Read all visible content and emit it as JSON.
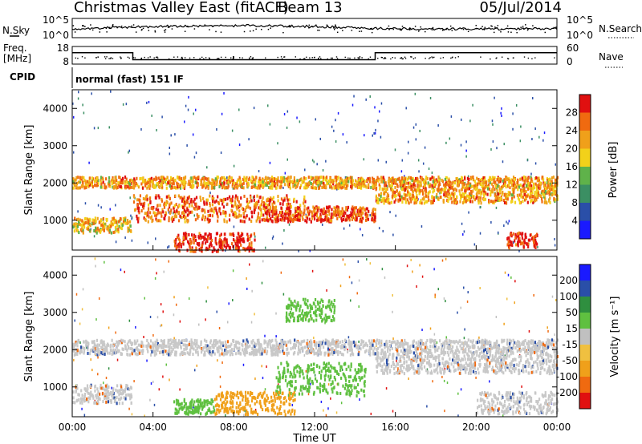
{
  "header": {
    "station": "Christmas Valley East (fitACF)",
    "beam": "Beam 13",
    "date": "05/Jul/2014"
  },
  "noise_panel": {
    "left_label": "N.Sky",
    "left_ticks": [
      "10^5",
      "10^0"
    ],
    "right_label": "N.Search",
    "right_ticks": [
      "10^5",
      "10^0"
    ]
  },
  "freq_panel": {
    "left_label_line1": "Freq.",
    "left_label_line2": "[MHz]",
    "left_ticks": [
      "18",
      "8"
    ],
    "right_label": "Nave",
    "right_ticks": [
      "60",
      "0"
    ]
  },
  "cpid_panel": {
    "label": "CPID",
    "mode_text": "normal (fast) 151 IF"
  },
  "colors": {
    "power": [
      "#1a1aff",
      "#2a4fa8",
      "#3b8f63",
      "#5fb24a",
      "#f2d11a",
      "#f0a01a",
      "#f06a10",
      "#e01010"
    ],
    "velocity": [
      "#e01010",
      "#f06a10",
      "#f0a01a",
      "#f0c040",
      "#c0c0c0",
      "#5fc040",
      "#2f8f3f",
      "#2a4fa8",
      "#1a1aff"
    ],
    "gray_scatter": "#c8c8c8"
  },
  "chart_data": [
    {
      "type": "heatmap",
      "name": "power",
      "ylabel": "Slant Range [km]",
      "xlabel": "",
      "ylim": [
        200,
        4500
      ],
      "y_ticks": [
        "1000",
        "2000",
        "3000",
        "4000"
      ],
      "colorbar_label": "Power [dB]",
      "colorbar_ticks": [
        "4",
        "8",
        "12",
        "16",
        "20",
        "24",
        "28"
      ],
      "colorbar_range": [
        0,
        32
      ],
      "bands": [
        {
          "t_start": 0.0,
          "t_end": 24.0,
          "range_km": [
            1900,
            2200
          ],
          "power_db": 22
        },
        {
          "t_start": 0.0,
          "t_end": 2.9,
          "range_km": [
            700,
            1100
          ],
          "power_db": 20
        },
        {
          "t_start": 3.0,
          "t_end": 11.5,
          "range_km": [
            1000,
            1700
          ],
          "power_db": 26
        },
        {
          "t_start": 9.5,
          "t_end": 15.0,
          "range_km": [
            1000,
            1400
          ],
          "power_db": 28
        },
        {
          "t_start": 15.0,
          "t_end": 24.0,
          "range_km": [
            1500,
            1900
          ],
          "power_db": 22
        },
        {
          "t_start": 5.0,
          "t_end": 9.0,
          "range_km": [
            200,
            700
          ],
          "power_db": 30
        },
        {
          "t_start": 21.5,
          "t_end": 23.0,
          "range_km": [
            300,
            700
          ],
          "power_db": 30
        }
      ]
    },
    {
      "type": "heatmap",
      "name": "velocity",
      "ylabel": "Slant Range [km]",
      "xlabel": "Time UT",
      "ylim": [
        200,
        4500
      ],
      "y_ticks": [
        "1000",
        "2000",
        "3000",
        "4000"
      ],
      "x_ticks": [
        "00:00",
        "04:00",
        "08:00",
        "12:00",
        "16:00",
        "20:00",
        "00:00"
      ],
      "xlim_hours": [
        0,
        24
      ],
      "colorbar_label": "Velocity [m s⁻¹]",
      "colorbar_ticks": [
        "200",
        "100",
        "50",
        "15",
        "-15",
        "-50",
        "-100",
        "-200"
      ],
      "bands": [
        {
          "t_start": 0.0,
          "t_end": 24.0,
          "range_km": [
            1900,
            2300
          ],
          "velocity": 0
        },
        {
          "t_start": 0.0,
          "t_end": 2.9,
          "range_km": [
            600,
            1100
          ],
          "velocity": 0
        },
        {
          "t_start": 15.0,
          "t_end": 24.0,
          "range_km": [
            1400,
            1900
          ],
          "velocity": 0
        },
        {
          "t_start": 10.0,
          "t_end": 14.5,
          "range_km": [
            800,
            1700
          ],
          "velocity": 40
        },
        {
          "t_start": 7.0,
          "t_end": 11.0,
          "range_km": [
            300,
            900
          ],
          "velocity": -60
        },
        {
          "t_start": 5.0,
          "t_end": 7.0,
          "range_km": [
            300,
            700
          ],
          "velocity": 40
        },
        {
          "t_start": 10.5,
          "t_end": 13.0,
          "range_km": [
            2800,
            3400
          ],
          "velocity": 40
        },
        {
          "t_start": 20.0,
          "t_end": 24.0,
          "range_km": [
            300,
            900
          ],
          "velocity": 0
        }
      ]
    }
  ]
}
